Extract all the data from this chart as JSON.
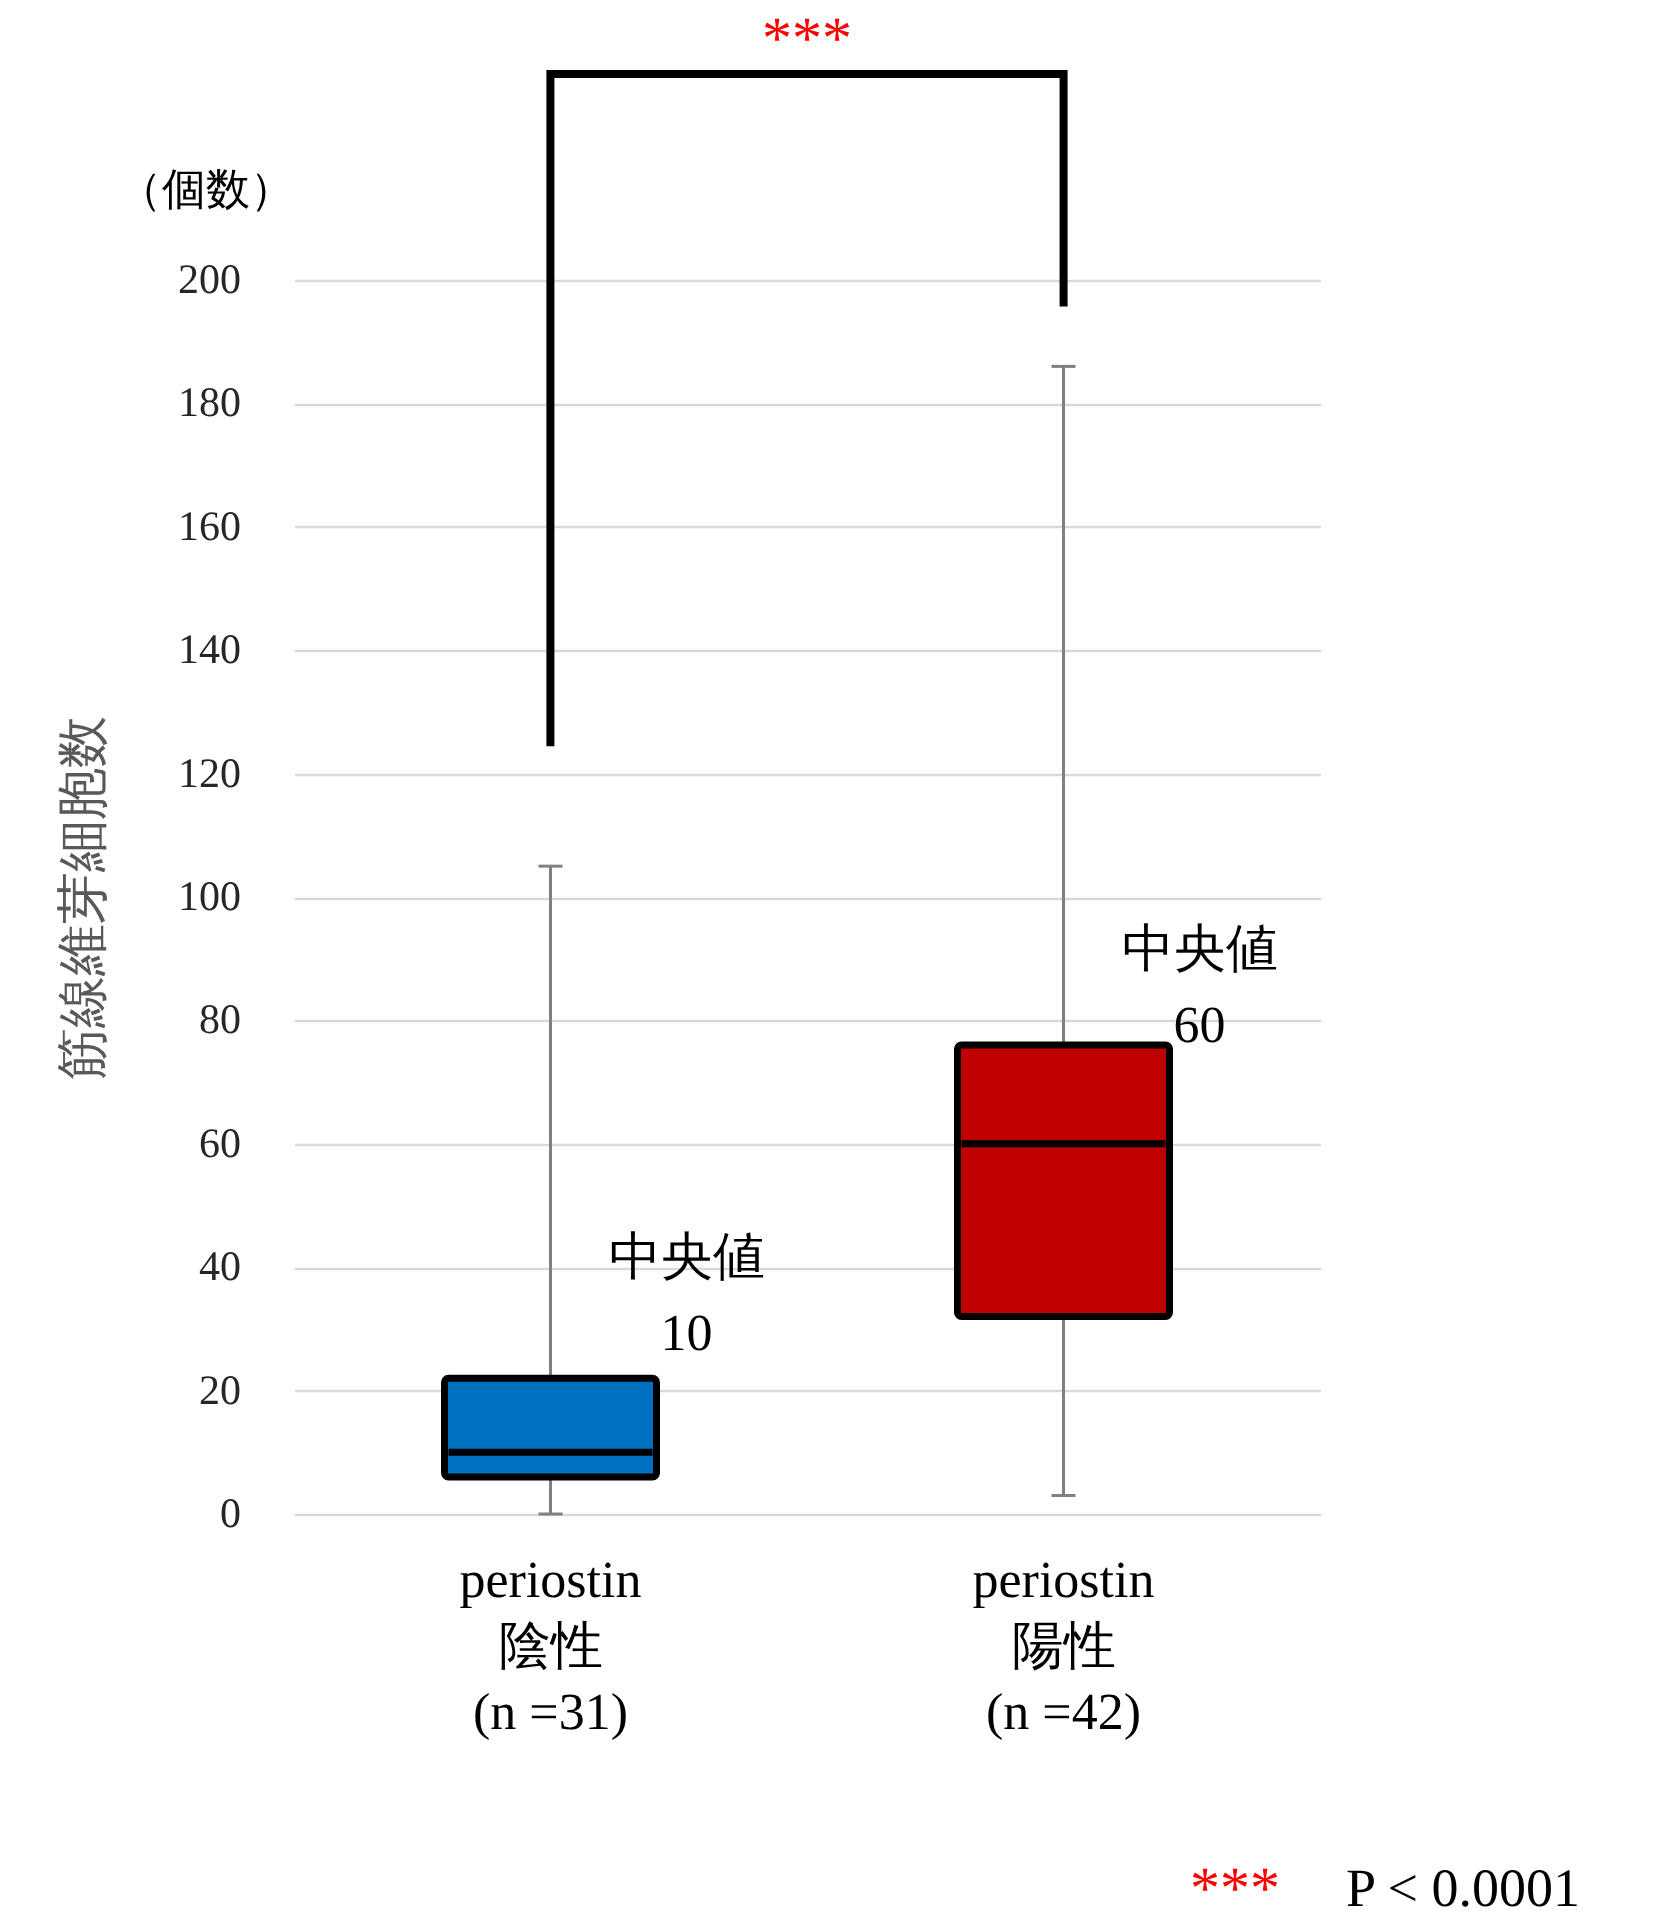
{
  "chart_data": {
    "type": "box",
    "categories": [
      "periostin\n陰性\n(n =31)",
      "periostin\n陽性\n(n =42)"
    ],
    "ylabel": "筋線維芽細胞数",
    "boxes": [
      {
        "low": 0,
        "q1": 6,
        "median": 10,
        "q3": 22,
        "high": 105
      },
      {
        "low": 3,
        "q1": 32,
        "median": 60,
        "q3": 76,
        "high": 186
      }
    ],
    "colors": [
      "#0070c0",
      "#c00000"
    ],
    "ylim": [
      0,
      200
    ],
    "yticks": [
      0,
      20,
      40,
      60,
      80,
      100,
      120,
      140,
      160,
      180,
      200
    ],
    "grid": "y",
    "annotations": [
      "（個数）",
      "***",
      "*** P < 0.0001",
      {
        "text": "中央値\n10",
        "x": "periostin\n陰性\n(n =31)",
        "y": 10
      },
      {
        "text": "中央値\n60",
        "x": "periostin\n陽性\n(n =42)",
        "y": 60
      }
    ]
  }
}
